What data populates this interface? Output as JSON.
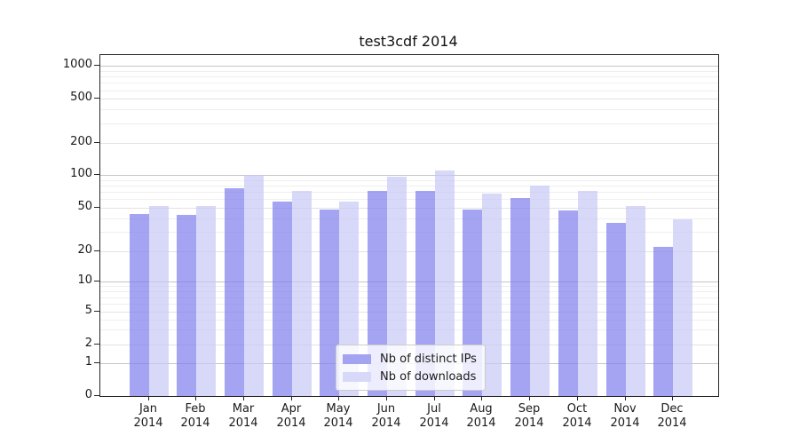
{
  "title": "test3cdf 2014",
  "legend": {
    "items": [
      {
        "label": "Nb of distinct IPs",
        "color": "#a3a3f2",
        "bar_fill": "rgba(125,125,238,0.70)"
      },
      {
        "label": "Nb of downloads",
        "color": "#d8d8f9",
        "bar_fill": "rgba(199,199,247,0.70)"
      }
    ]
  },
  "y_axis": {
    "tick_values": [
      0,
      1,
      2,
      5,
      10,
      20,
      50,
      100,
      200,
      500,
      1000
    ],
    "tick_labels": [
      "0",
      "1",
      "2",
      "5",
      "10",
      "20",
      "50",
      "100",
      "200",
      "500",
      "1000"
    ],
    "minor_gridline_values": [
      3,
      4,
      6,
      7,
      8,
      9,
      30,
      40,
      60,
      70,
      80,
      90,
      300,
      400,
      600,
      700,
      800,
      900
    ]
  },
  "x_axis": {
    "year": "2014",
    "months": [
      "Jan",
      "Feb",
      "Mar",
      "Apr",
      "May",
      "Jun",
      "Jul",
      "Aug",
      "Sep",
      "Oct",
      "Nov",
      "Dec"
    ]
  },
  "chart_data": {
    "type": "bar",
    "title": "test3cdf 2014",
    "categories": [
      "Jan 2014",
      "Feb 2014",
      "Mar 2014",
      "Apr 2014",
      "May 2014",
      "Jun 2014",
      "Jul 2014",
      "Aug 2014",
      "Sep 2014",
      "Oct 2014",
      "Nov 2014",
      "Dec 2014"
    ],
    "series": [
      {
        "name": "Nb of distinct IPs",
        "color": "#a3a3f2",
        "values": [
          44,
          43,
          76,
          57,
          48,
          71,
          72,
          48,
          61,
          47,
          36,
          22
        ]
      },
      {
        "name": "Nb of downloads",
        "color": "#d8d8f9",
        "values": [
          52,
          52,
          100,
          72,
          57,
          96,
          110,
          67,
          80,
          72,
          52,
          39
        ]
      }
    ],
    "yscale": "log-like (0,1,2,5,10,20,50,100,200,500,1000 ticks)",
    "yticks": [
      0,
      1,
      2,
      5,
      10,
      20,
      50,
      100,
      200,
      500,
      1000
    ],
    "ylim": [
      0,
      1260
    ],
    "grid": "horizontal major + minor gridlines",
    "legend_position": "lower center inside plot"
  }
}
